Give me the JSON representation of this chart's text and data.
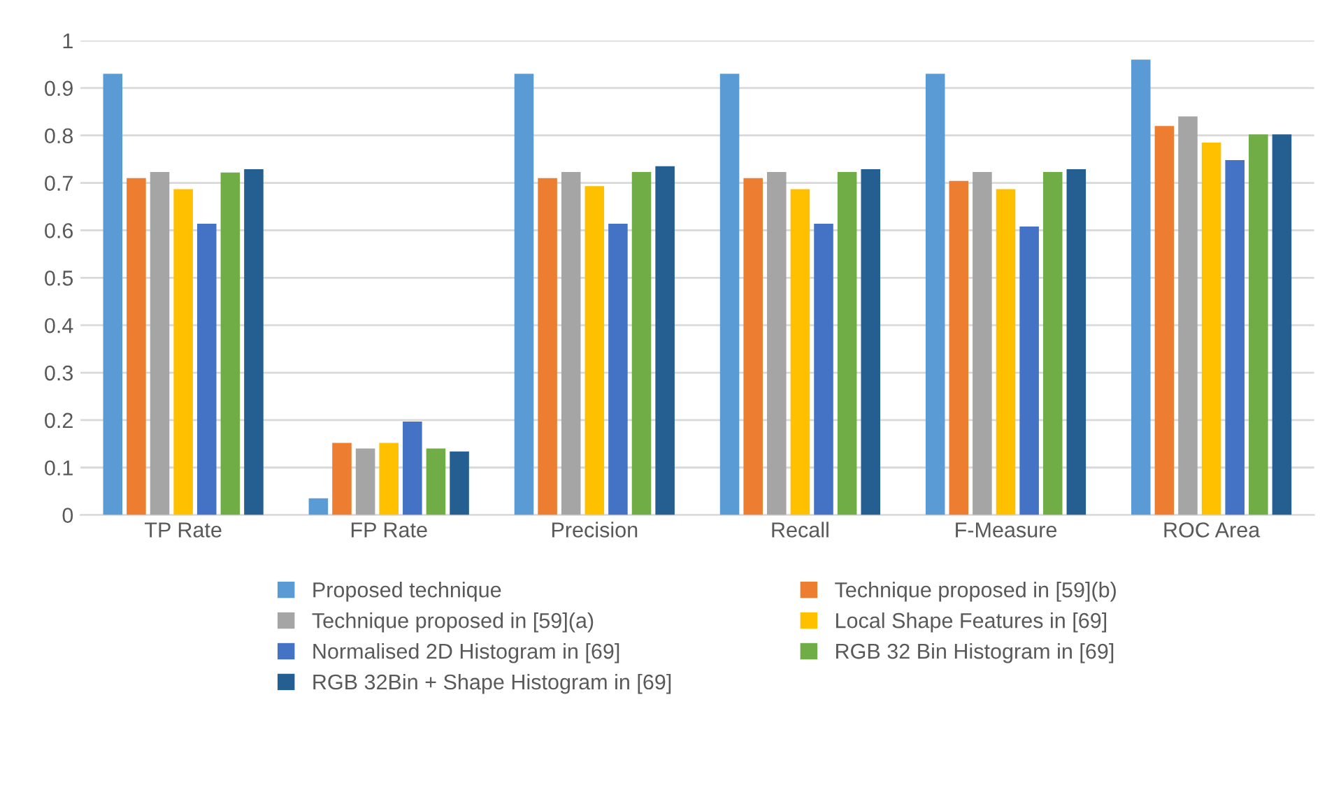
{
  "chart_data": {
    "type": "bar",
    "categories": [
      "TP Rate",
      "FP Rate",
      "Precision",
      "Recall",
      "F-Measure",
      "ROC Area"
    ],
    "series": [
      {
        "name": "Proposed technique",
        "color": "#5b9bd5",
        "values": [
          0.93,
          0.035,
          0.93,
          0.93,
          0.93,
          0.96
        ]
      },
      {
        "name": "Technique proposed in [59](b)",
        "color": "#ed7d31",
        "values": [
          0.71,
          0.152,
          0.71,
          0.71,
          0.704,
          0.82
        ]
      },
      {
        "name": "Technique proposed in [59](a)",
        "color": "#a5a5a5",
        "values": [
          0.723,
          0.14,
          0.723,
          0.723,
          0.723,
          0.84
        ]
      },
      {
        "name": "Local Shape Features in [69]",
        "color": "#ffc000",
        "values": [
          0.687,
          0.152,
          0.693,
          0.687,
          0.687,
          0.785
        ]
      },
      {
        "name": "Normalised 2D Histogram in [69]",
        "color": "#4472c4",
        "values": [
          0.614,
          0.197,
          0.614,
          0.614,
          0.608,
          0.748
        ]
      },
      {
        "name": "RGB 32 Bin Histogram in [69]",
        "color": "#70ad47",
        "values": [
          0.722,
          0.14,
          0.723,
          0.723,
          0.723,
          0.802
        ]
      },
      {
        "name": "RGB 32Bin + Shape Histogram in [69]",
        "color": "#255e91",
        "values": [
          0.729,
          0.134,
          0.735,
          0.729,
          0.729,
          0.802
        ]
      }
    ],
    "ylim": [
      0,
      1
    ],
    "yticks": [
      0,
      0.1,
      0.2,
      0.3,
      0.4,
      0.5,
      0.6,
      0.7,
      0.8,
      0.9,
      1
    ],
    "grid": "y",
    "legend": "bottom"
  }
}
